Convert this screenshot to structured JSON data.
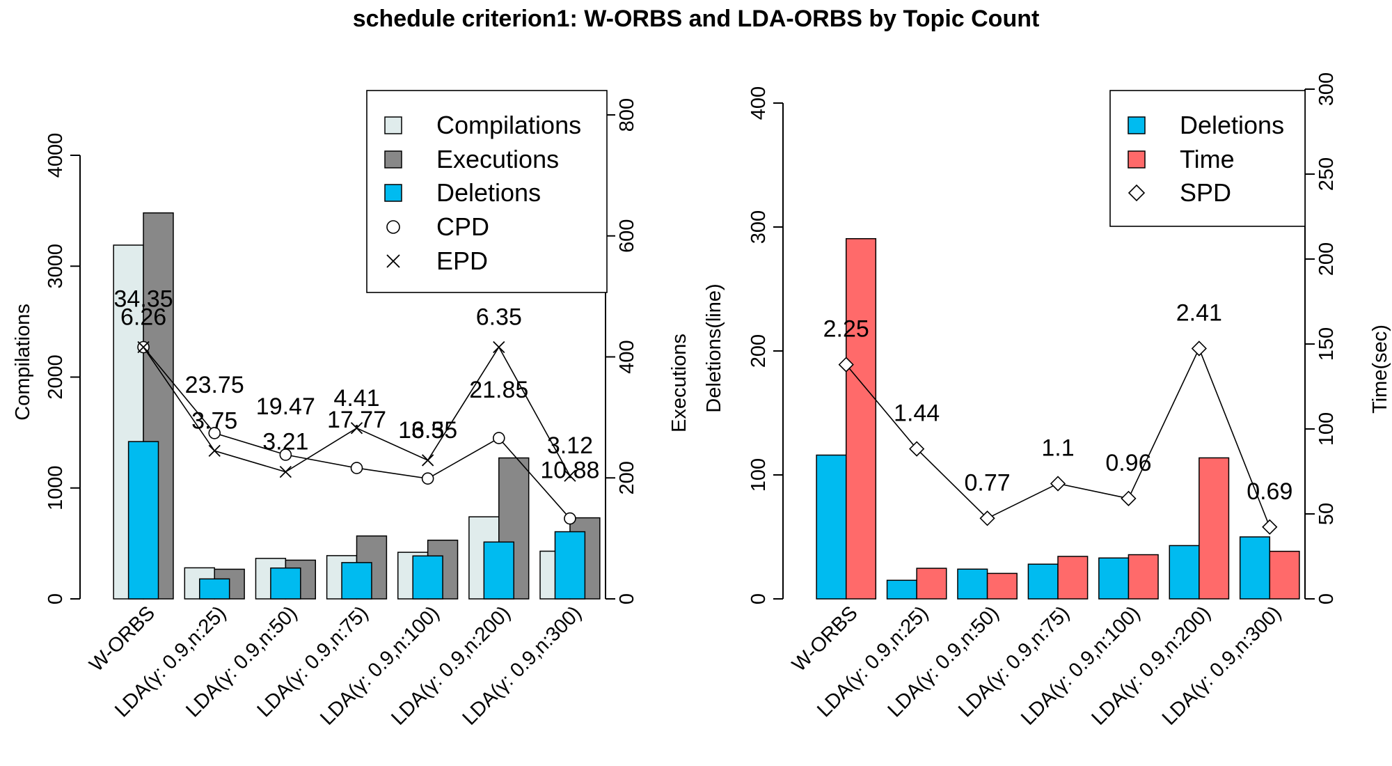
{
  "title": "schedule criterion1: W-ORBS and LDA-ORBS by Topic Count",
  "chart_data": [
    {
      "type": "bar",
      "categories": [
        "W-ORBS",
        "LDA(γ: 0.9,n:25)",
        "LDA(γ: 0.9,n:50)",
        "LDA(γ: 0.9,n:75)",
        "LDA(γ: 0.9,n:100)",
        "LDA(γ: 0.9,n:200)",
        "LDA(γ: 0.9,n:300)"
      ],
      "ylabel": "Compilations",
      "y2label": "Executions",
      "ylim": [
        0,
        4000
      ],
      "y2lim": [
        0,
        800
      ],
      "yticks": [
        "0",
        "1000",
        "2000",
        "3000",
        "4000"
      ],
      "y2ticks": [
        "0",
        "200",
        "400",
        "600",
        "800"
      ],
      "series": [
        {
          "name": "Compilations",
          "axis": "left",
          "color": "#e0ecec",
          "values": [
            3190,
            280,
            365,
            390,
            420,
            740,
            430
          ]
        },
        {
          "name": "Executions",
          "axis": "right",
          "color": "#888888",
          "values": [
            638,
            49,
            64,
            104,
            97,
            233,
            134
          ]
        },
        {
          "name": "Deletions",
          "axis": "right",
          "color": "#00bbf0",
          "values": [
            260,
            33,
            51,
            60,
            71,
            94,
            111
          ]
        }
      ],
      "lines": [
        {
          "name": "CPD",
          "marker": "circle",
          "axis": "left",
          "values": [
            2270,
            1495,
            1300,
            1180,
            1085,
            1450,
            725
          ],
          "labels": [
            "34.35",
            "23.75",
            "19.47",
            "17.77",
            "16.35",
            "21.85",
            "10.88"
          ]
        },
        {
          "name": "EPD",
          "marker": "x",
          "axis": "left",
          "values": [
            2270,
            1335,
            1145,
            1540,
            1250,
            2270,
            1110
          ],
          "labels": [
            "6.26",
            "3.75",
            "3.21",
            "4.41",
            "3.5",
            "6.35",
            "3.12"
          ]
        }
      ],
      "legend": {
        "placement": "top-right",
        "entries": [
          "Compilations",
          "Executions",
          "Deletions",
          "CPD",
          "EPD"
        ]
      }
    },
    {
      "type": "bar",
      "categories": [
        "W-ORBS",
        "LDA(γ: 0.9,n:25)",
        "LDA(γ: 0.9,n:50)",
        "LDA(γ: 0.9,n:75)",
        "LDA(γ: 0.9,n:100)",
        "LDA(γ: 0.9,n:200)",
        "LDA(γ: 0.9,n:300)"
      ],
      "ylabel": "Deletions(line)",
      "y2label": "Time(sec)",
      "ylim": [
        0,
        400
      ],
      "y2lim": [
        0,
        300
      ],
      "yticks": [
        "0",
        "100",
        "200",
        "300",
        "400"
      ],
      "y2ticks": [
        "0",
        "50",
        "100",
        "150",
        "200",
        "250",
        "300"
      ],
      "series": [
        {
          "name": "Deletions",
          "axis": "left",
          "color": "#00bbf0",
          "values": [
            116,
            15,
            24,
            28,
            33,
            43,
            50
          ]
        },
        {
          "name": "Time",
          "axis": "right",
          "color": "#ff6a6a",
          "values": [
            212,
            18,
            15,
            25,
            26,
            83,
            28
          ]
        }
      ],
      "lines": [
        {
          "name": "SPD",
          "marker": "diamond",
          "axis": "left",
          "values": [
            189,
            121,
            65,
            93,
            81,
            202,
            58
          ],
          "labels": [
            "2.25",
            "1.44",
            "0.77",
            "1.1",
            "0.96",
            "2.41",
            "0.69"
          ]
        }
      ],
      "legend": {
        "placement": "top-right",
        "entries": [
          "Deletions",
          "Time",
          "SPD"
        ]
      }
    }
  ]
}
